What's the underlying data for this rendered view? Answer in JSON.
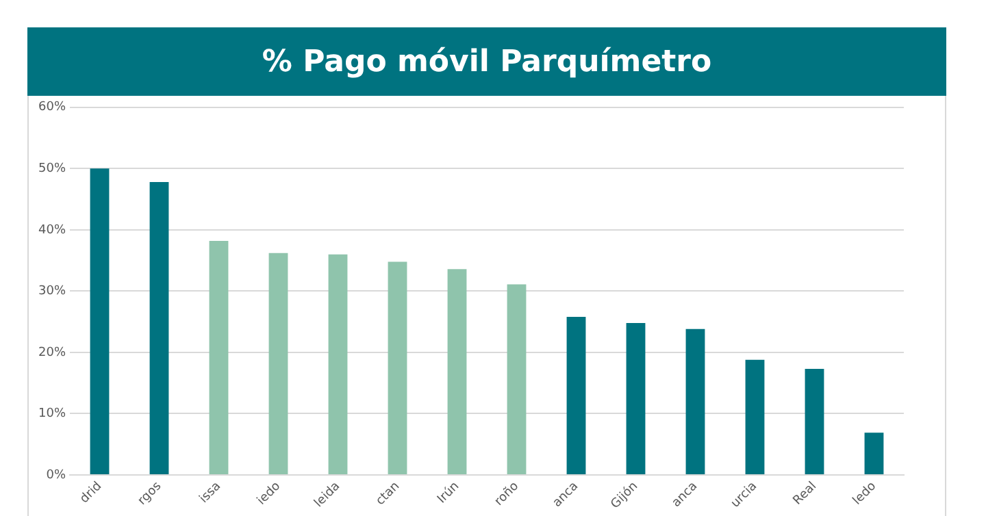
{
  "chart_data": {
    "type": "bar",
    "title": "% Pago móvil Parquímetro",
    "categories": [
      "drid",
      "rgos",
      "issa",
      "iedo",
      "leida",
      "ctan",
      "Irún",
      "roño",
      "anca",
      "Gijón",
      "anca",
      "urcia",
      "Real",
      "ledo"
    ],
    "values": [
      50,
      47.8,
      38.2,
      36.2,
      36,
      34.8,
      33.6,
      31.1,
      25.8,
      24.8,
      23.8,
      18.8,
      17.3,
      6.9
    ],
    "colors": [
      "#007380",
      "#007380",
      "#8fc4ac",
      "#8fc4ac",
      "#8fc4ac",
      "#8fc4ac",
      "#8fc4ac",
      "#8fc4ac",
      "#007380",
      "#007380",
      "#007380",
      "#007380",
      "#007380",
      "#007380"
    ],
    "ylim": [
      0,
      60
    ],
    "yticks": [
      {
        "value": 0,
        "label": "0%"
      },
      {
        "value": 10,
        "label": "10%"
      },
      {
        "value": 20,
        "label": "20%"
      },
      {
        "value": 30,
        "label": "30%"
      },
      {
        "value": 40,
        "label": "40%"
      },
      {
        "value": 50,
        "label": "50%"
      },
      {
        "value": 60,
        "label": "60%"
      }
    ],
    "grid": "y"
  }
}
